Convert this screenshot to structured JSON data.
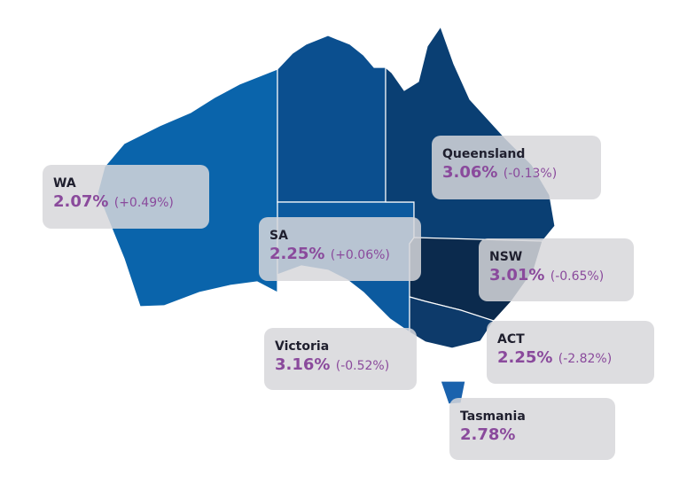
{
  "regions": [
    {
      "name": "WA",
      "value": "2.07%",
      "change": "(+0.49%)"
    },
    {
      "name": "Queensland",
      "value": "3.06%",
      "change": "(-0.13%)"
    },
    {
      "name": "SA",
      "value": "2.25%",
      "change": "(+0.06%)"
    },
    {
      "name": "NSW",
      "value": "3.01%",
      "change": "(-0.65%)"
    },
    {
      "name": "Victoria",
      "value": "3.16%",
      "change": "(-0.52%)"
    },
    {
      "name": "ACT",
      "value": "2.25%",
      "change": "(-2.82%)"
    },
    {
      "name": "Tasmania",
      "value": "2.78%"
    }
  ]
}
